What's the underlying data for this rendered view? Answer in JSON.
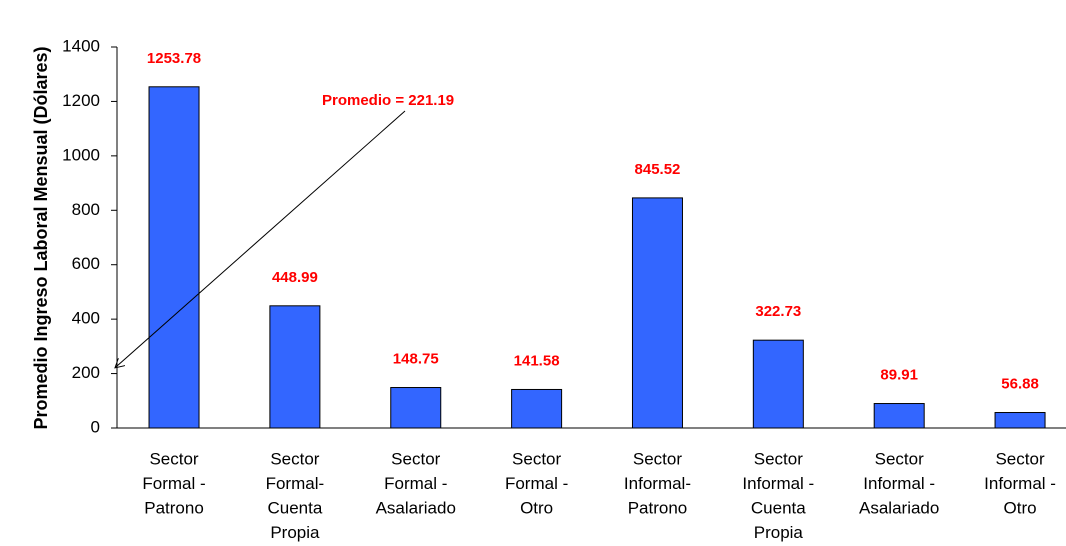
{
  "chart_data": {
    "type": "bar",
    "y_label": "Promedio Ingreso Laboral Mensual (Dólares)",
    "categories": [
      [
        "Sector",
        "Formal -",
        "Patrono"
      ],
      [
        "Sector",
        "Formal-",
        "Cuenta",
        "Propia"
      ],
      [
        "Sector",
        "Formal -",
        "Asalariado"
      ],
      [
        "Sector",
        "Formal -",
        "Otro"
      ],
      [
        "Sector",
        "Informal-",
        "Patrono"
      ],
      [
        "Sector",
        "Informal -",
        "Cuenta",
        "Propia"
      ],
      [
        "Sector",
        "Informal -",
        "Asalariado"
      ],
      [
        "Sector",
        "Informal -",
        "Otro"
      ]
    ],
    "values": [
      1253.78,
      448.99,
      148.75,
      141.58,
      845.52,
      322.73,
      89.91,
      56.88
    ],
    "color": "#3366ff",
    "label_color": "#ff0000",
    "ylim": [
      0,
      1400
    ],
    "yticks": [
      0,
      200,
      400,
      600,
      800,
      1000,
      1200,
      1400
    ],
    "grid": false,
    "annotation": {
      "text": "Promedio = 221.19",
      "value": 221.19
    }
  }
}
